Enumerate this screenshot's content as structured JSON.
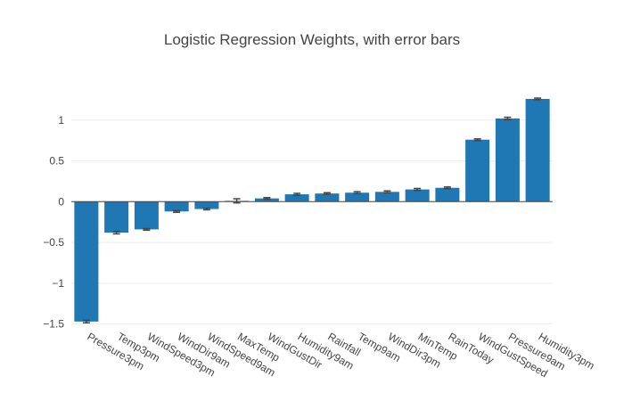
{
  "chart_data": {
    "type": "bar",
    "title": "Logistic Regression Weights, with error bars",
    "xlabel": "",
    "ylabel": "",
    "ylim": [
      -1.57,
      1.38
    ],
    "yticks": [
      1,
      0.5,
      0,
      -0.5,
      -1,
      -1.5
    ],
    "ytick_labels": [
      "1",
      "0.5",
      "0",
      "−0.5",
      "−1",
      "−1.5"
    ],
    "grid": true,
    "bar_color": "#1f77b4",
    "errorbar_color": "#444444",
    "categories": [
      "Pressure3pm",
      "Temp3pm",
      "WindSpeed3pm",
      "WindDir9am",
      "WindSpeed9am",
      "MaxTemp",
      "WindGustDir",
      "Humidity9am",
      "Rainfall",
      "Temp9am",
      "WindDir3pm",
      "MinTemp",
      "RainToday",
      "WindGustSpeed",
      "Pressure9am",
      "Humidity3pm"
    ],
    "values": [
      -1.47,
      -0.38,
      -0.34,
      -0.12,
      -0.09,
      0.01,
      0.04,
      0.09,
      0.1,
      0.11,
      0.12,
      0.15,
      0.17,
      0.76,
      1.02,
      1.26
    ],
    "errors": [
      0.015,
      0.015,
      0.01,
      0.01,
      0.01,
      0.025,
      0.01,
      0.012,
      0.01,
      0.012,
      0.012,
      0.012,
      0.01,
      0.01,
      0.015,
      0.01
    ]
  }
}
